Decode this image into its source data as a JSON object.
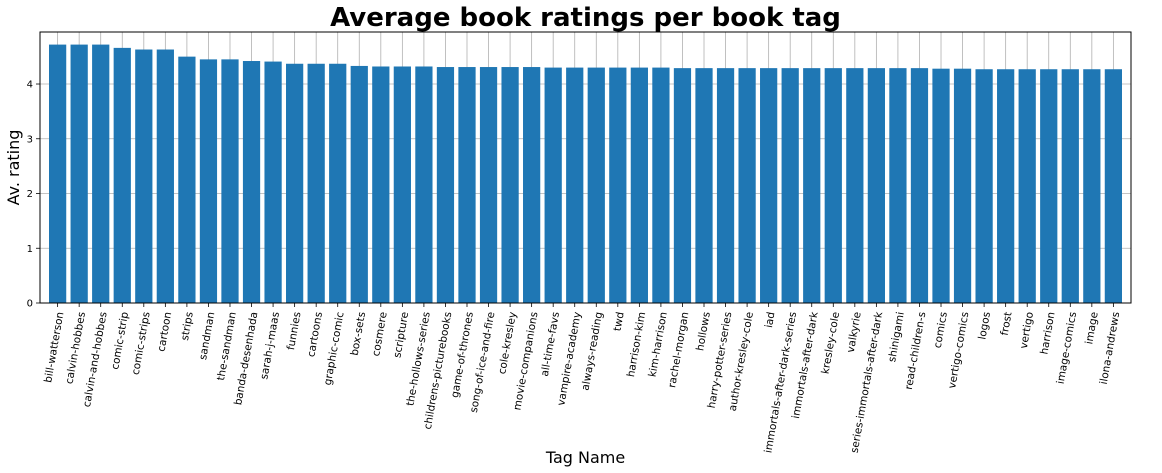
{
  "chart_data": {
    "type": "bar",
    "title": "Average book ratings per book tag",
    "xlabel": "Tag Name",
    "ylabel": "Av. rating",
    "ylim": [
      0,
      4.95
    ],
    "yticks": [
      0,
      1,
      2,
      3,
      4
    ],
    "grid": true,
    "bar_color": "#1f77b4",
    "categories": [
      "bill-watterson",
      "calvin-hobbes",
      "calvin-and-hobbes",
      "comic-strip",
      "comic-strips",
      "cartoon",
      "strips",
      "sandman",
      "the-sandman",
      "banda-desenhada",
      "sarah-j-maas",
      "funnies",
      "cartoons",
      "graphic-comic",
      "box-sets",
      "cosmere",
      "scripture",
      "the-hollows-series",
      "childrens-picturebooks",
      "game-of-thrones",
      "song-of-ice-and-fire",
      "cole-kresley",
      "movie-companions",
      "all-time-favs",
      "vampire-academy",
      "always-reading",
      "twd",
      "harrison-kim",
      "kim-harrison",
      "rachel-morgan",
      "hollows",
      "harry-potter-series",
      "author-kresley-cole",
      "iad",
      "immortals-after-dark-series",
      "immortals-after-dark",
      "kresley-cole",
      "valkyrie",
      "series-immortals-after-dark",
      "shinigami",
      "read-children-s",
      "comics",
      "vertigo-comics",
      "logos",
      "frost",
      "vertigo",
      "harrison",
      "image-comics",
      "image",
      "ilona-andrews"
    ],
    "values": [
      4.72,
      4.72,
      4.72,
      4.66,
      4.63,
      4.63,
      4.5,
      4.45,
      4.45,
      4.42,
      4.41,
      4.37,
      4.37,
      4.37,
      4.33,
      4.32,
      4.32,
      4.32,
      4.31,
      4.31,
      4.31,
      4.31,
      4.31,
      4.3,
      4.3,
      4.3,
      4.3,
      4.3,
      4.3,
      4.29,
      4.29,
      4.29,
      4.29,
      4.29,
      4.29,
      4.29,
      4.29,
      4.29,
      4.29,
      4.29,
      4.29,
      4.28,
      4.28,
      4.27,
      4.27,
      4.27,
      4.27,
      4.27,
      4.27,
      4.27
    ]
  }
}
